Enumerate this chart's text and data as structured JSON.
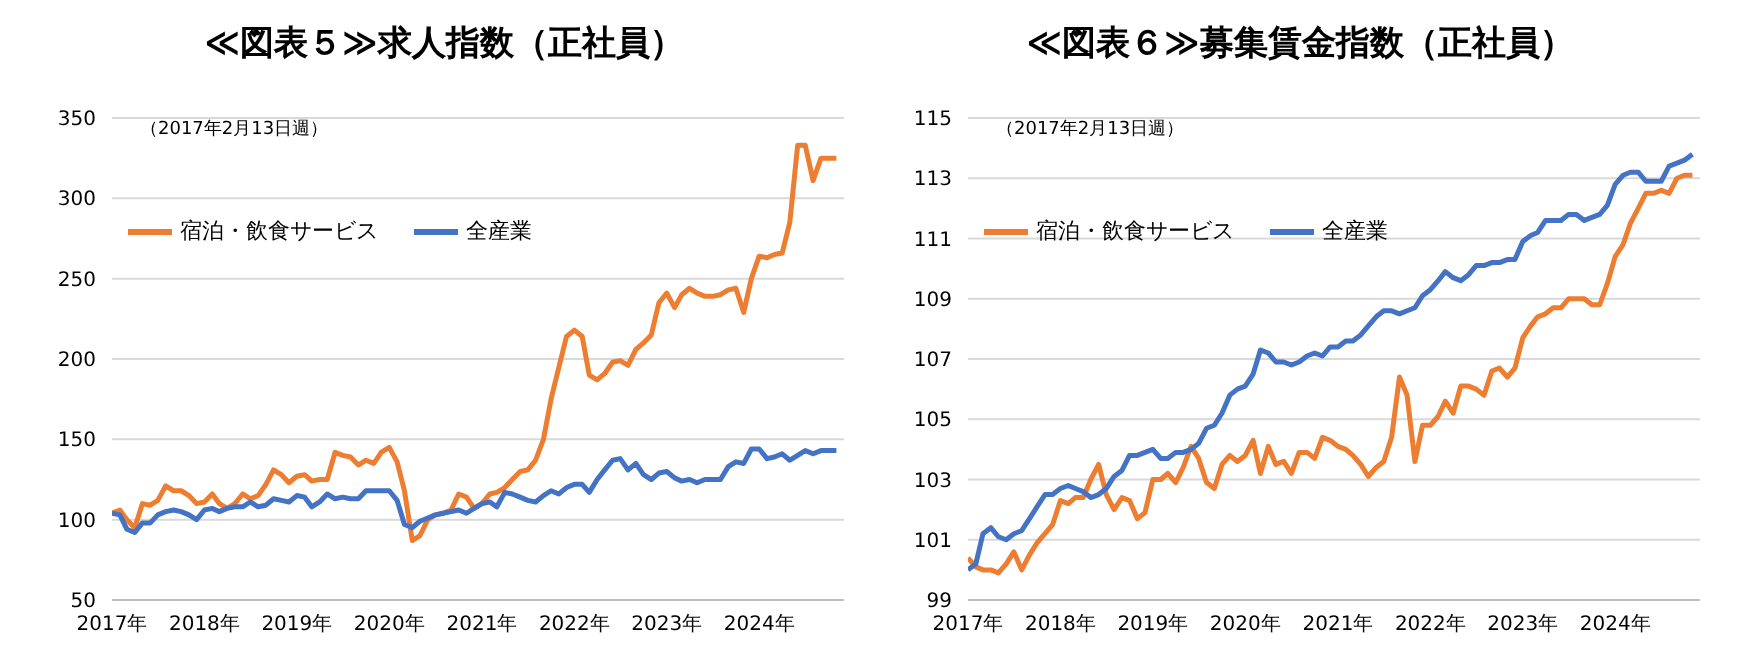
{
  "chart_data": [
    {
      "type": "line",
      "title": "≪図表５≫求人指数（正社員）",
      "annotations": [
        "（2017年2月13日週）"
      ],
      "legend": "top left",
      "grid": "y",
      "marker": "none",
      "line_style": "solid",
      "x": [
        "2017-01",
        "2017-02",
        "2017-03",
        "2017-04",
        "2017-05",
        "2017-06",
        "2017-07",
        "2017-08",
        "2017-09",
        "2017-10",
        "2017-11",
        "2017-12",
        "2018-01",
        "2018-02",
        "2018-03",
        "2018-04",
        "2018-05",
        "2018-06",
        "2018-07",
        "2018-08",
        "2018-09",
        "2018-10",
        "2018-11",
        "2018-12",
        "2019-01",
        "2019-02",
        "2019-03",
        "2019-04",
        "2019-05",
        "2019-06",
        "2019-07",
        "2019-08",
        "2019-09",
        "2019-10",
        "2019-11",
        "2019-12",
        "2020-01",
        "2020-02",
        "2020-03",
        "2020-04",
        "2020-05",
        "2020-06",
        "2020-07",
        "2020-08",
        "2020-09",
        "2020-10",
        "2020-11",
        "2020-12",
        "2021-01",
        "2021-02",
        "2021-03",
        "2021-04",
        "2021-05",
        "2021-06",
        "2021-07",
        "2021-08",
        "2021-09",
        "2021-10",
        "2021-11",
        "2021-12",
        "2022-01",
        "2022-02",
        "2022-03",
        "2022-04",
        "2022-05",
        "2022-06",
        "2022-07",
        "2022-08",
        "2022-09",
        "2022-10",
        "2022-11",
        "2022-12",
        "2023-01",
        "2023-02",
        "2023-03",
        "2023-04",
        "2023-05",
        "2023-06",
        "2023-07",
        "2023-08",
        "2023-09",
        "2023-10",
        "2023-11",
        "2023-12",
        "2024-01",
        "2024-02",
        "2024-03",
        "2024-04",
        "2024-05",
        "2024-06",
        "2024-07",
        "2024-08",
        "2024-09",
        "2024-10",
        "2024-11"
      ],
      "xlim": [
        "2017-01",
        "2024-12"
      ],
      "xticks": [
        {
          "value": "2017-01",
          "label": "2017年"
        },
        {
          "value": "2018-01",
          "label": "2018年"
        },
        {
          "value": "2019-01",
          "label": "2019年"
        },
        {
          "value": "2020-01",
          "label": "2020年"
        },
        {
          "value": "2021-01",
          "label": "2021年"
        },
        {
          "value": "2022-01",
          "label": "2022年"
        },
        {
          "value": "2023-01",
          "label": "2023年"
        },
        {
          "value": "2024-01",
          "label": "2024年"
        }
      ],
      "ylim": [
        50,
        350
      ],
      "yticks": [
        50,
        100,
        150,
        200,
        250,
        300,
        350
      ],
      "series": [
        {
          "name": "宿泊・飲食サービス",
          "color": "#ed7d31",
          "values": [
            104,
            106,
            100,
            95,
            110,
            109,
            112,
            121,
            118,
            118,
            115,
            110,
            111,
            116,
            110,
            107,
            110,
            116,
            113,
            115,
            122,
            131,
            128,
            123,
            127,
            128,
            124,
            125,
            125,
            142,
            140,
            139,
            134,
            137,
            135,
            142,
            145,
            136,
            118,
            87,
            90,
            100,
            103,
            104,
            106,
            116,
            114,
            107,
            110,
            116,
            117,
            120,
            125,
            130,
            131,
            137,
            150,
            175,
            195,
            214,
            218,
            214,
            190,
            187,
            191,
            198,
            199,
            196,
            206,
            210,
            215,
            235,
            241,
            232,
            240,
            244,
            241,
            239,
            239,
            240,
            243,
            244,
            229,
            250,
            264,
            263,
            265,
            266,
            285,
            333,
            333,
            311,
            325,
            325,
            325
          ]
        },
        {
          "name": "全産業",
          "color": "#4472c4",
          "values": [
            104,
            103,
            94,
            92,
            98,
            98,
            103,
            105,
            106,
            105,
            103,
            100,
            106,
            107,
            105,
            107,
            108,
            108,
            111,
            108,
            109,
            113,
            112,
            111,
            115,
            114,
            108,
            111,
            116,
            113,
            114,
            113,
            113,
            118,
            118,
            118,
            118,
            112,
            97,
            95,
            99,
            101,
            103,
            104,
            105,
            106,
            104,
            107,
            110,
            111,
            108,
            117,
            116,
            114,
            112,
            111,
            115,
            118,
            116,
            120,
            122,
            122,
            117,
            125,
            131,
            137,
            138,
            131,
            135,
            128,
            125,
            129,
            130,
            126,
            124,
            125,
            123,
            125,
            125,
            125,
            133,
            136,
            135,
            144,
            144,
            138,
            139,
            141,
            137,
            140,
            143,
            141,
            143,
            143,
            143
          ]
        }
      ]
    },
    {
      "type": "line",
      "title": "≪図表６≫募集賃金指数（正社員）",
      "annotations": [
        "（2017年2月13日週）"
      ],
      "legend": "top left",
      "grid": "y",
      "marker": "none",
      "line_style": "solid",
      "x": [
        "2017-01",
        "2017-02",
        "2017-03",
        "2017-04",
        "2017-05",
        "2017-06",
        "2017-07",
        "2017-08",
        "2017-09",
        "2017-10",
        "2017-11",
        "2017-12",
        "2018-01",
        "2018-02",
        "2018-03",
        "2018-04",
        "2018-05",
        "2018-06",
        "2018-07",
        "2018-08",
        "2018-09",
        "2018-10",
        "2018-11",
        "2018-12",
        "2019-01",
        "2019-02",
        "2019-03",
        "2019-04",
        "2019-05",
        "2019-06",
        "2019-07",
        "2019-08",
        "2019-09",
        "2019-10",
        "2019-11",
        "2019-12",
        "2020-01",
        "2020-02",
        "2020-03",
        "2020-04",
        "2020-05",
        "2020-06",
        "2020-07",
        "2020-08",
        "2020-09",
        "2020-10",
        "2020-11",
        "2020-12",
        "2021-01",
        "2021-02",
        "2021-03",
        "2021-04",
        "2021-05",
        "2021-06",
        "2021-07",
        "2021-08",
        "2021-09",
        "2021-10",
        "2021-11",
        "2021-12",
        "2022-01",
        "2022-02",
        "2022-03",
        "2022-04",
        "2022-05",
        "2022-06",
        "2022-07",
        "2022-08",
        "2022-09",
        "2022-10",
        "2022-11",
        "2022-12",
        "2023-01",
        "2023-02",
        "2023-03",
        "2023-04",
        "2023-05",
        "2023-06",
        "2023-07",
        "2023-08",
        "2023-09",
        "2023-10",
        "2023-11",
        "2023-12",
        "2024-01",
        "2024-02",
        "2024-03",
        "2024-04",
        "2024-05",
        "2024-06",
        "2024-07",
        "2024-08",
        "2024-09",
        "2024-10",
        "2024-11"
      ],
      "xlim": [
        "2017-01",
        "2024-12"
      ],
      "xticks": [
        {
          "value": "2017-01",
          "label": "2017年"
        },
        {
          "value": "2018-01",
          "label": "2018年"
        },
        {
          "value": "2019-01",
          "label": "2019年"
        },
        {
          "value": "2020-01",
          "label": "2020年"
        },
        {
          "value": "2021-01",
          "label": "2021年"
        },
        {
          "value": "2022-01",
          "label": "2022年"
        },
        {
          "value": "2023-01",
          "label": "2023年"
        },
        {
          "value": "2024-01",
          "label": "2024年"
        }
      ],
      "ylim": [
        99,
        115
      ],
      "yticks": [
        99,
        101,
        103,
        105,
        107,
        109,
        111,
        113,
        115
      ],
      "series": [
        {
          "name": "宿泊・飲食サービス",
          "color": "#ed7d31",
          "values": [
            100.4,
            100.1,
            100.0,
            100.0,
            99.9,
            100.2,
            100.6,
            100.0,
            100.5,
            100.9,
            101.2,
            101.5,
            102.3,
            102.2,
            102.4,
            102.4,
            103.0,
            103.5,
            102.5,
            102.0,
            102.4,
            102.3,
            101.7,
            101.9,
            103.0,
            103.0,
            103.2,
            102.9,
            103.4,
            104.1,
            103.7,
            102.9,
            102.7,
            103.5,
            103.8,
            103.6,
            103.8,
            104.3,
            103.2,
            104.1,
            103.5,
            103.6,
            103.2,
            103.9,
            103.9,
            103.7,
            104.4,
            104.3,
            104.1,
            104.0,
            103.8,
            103.5,
            103.1,
            103.4,
            103.6,
            104.4,
            106.4,
            105.8,
            103.6,
            104.8,
            104.8,
            105.1,
            105.6,
            105.2,
            106.1,
            106.1,
            106.0,
            105.8,
            106.6,
            106.7,
            106.4,
            106.7,
            107.7,
            108.1,
            108.4,
            108.5,
            108.7,
            108.7,
            109.0,
            109.0,
            109.0,
            108.8,
            108.8,
            109.5,
            110.4,
            110.8,
            111.5,
            112.0,
            112.5,
            112.5,
            112.6,
            112.5,
            113.0,
            113.1,
            113.1
          ]
        },
        {
          "name": "全産業",
          "color": "#4472c4",
          "values": [
            100.0,
            100.2,
            101.2,
            101.4,
            101.1,
            101.0,
            101.2,
            101.3,
            101.7,
            102.1,
            102.5,
            102.5,
            102.7,
            102.8,
            102.7,
            102.6,
            102.4,
            102.5,
            102.7,
            103.1,
            103.3,
            103.8,
            103.8,
            103.9,
            104.0,
            103.7,
            103.7,
            103.9,
            103.9,
            104.0,
            104.2,
            104.7,
            104.8,
            105.2,
            105.8,
            106.0,
            106.1,
            106.5,
            107.3,
            107.2,
            106.9,
            106.9,
            106.8,
            106.9,
            107.1,
            107.2,
            107.1,
            107.4,
            107.4,
            107.6,
            107.6,
            107.8,
            108.1,
            108.4,
            108.6,
            108.6,
            108.5,
            108.6,
            108.7,
            109.1,
            109.3,
            109.6,
            109.9,
            109.7,
            109.6,
            109.8,
            110.1,
            110.1,
            110.2,
            110.2,
            110.3,
            110.3,
            110.9,
            111.1,
            111.2,
            111.6,
            111.6,
            111.6,
            111.8,
            111.8,
            111.6,
            111.7,
            111.8,
            112.1,
            112.8,
            113.1,
            113.2,
            113.2,
            112.9,
            112.9,
            112.9,
            113.4,
            113.5,
            113.6,
            113.8
          ]
        }
      ]
    }
  ]
}
